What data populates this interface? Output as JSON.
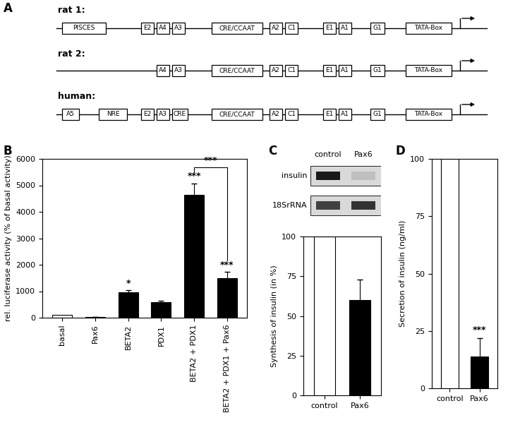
{
  "diagram": {
    "label": "A",
    "rows": [
      {
        "name": "rat 1:",
        "elements": [
          "PISCES",
          "E2",
          "A4",
          "A3",
          "CRE/CCAAT",
          "A2",
          "C1",
          "E1",
          "A1",
          "G1",
          "TATA-Box"
        ]
      },
      {
        "name": "rat 2:",
        "elements": [
          "A4",
          "A3",
          "CRE/CCAAT",
          "A2",
          "C1",
          "E1",
          "A1",
          "G1",
          "TATA-Box"
        ]
      },
      {
        "name": "human:",
        "elements": [
          "A5",
          "NRE",
          "E2",
          "A3",
          "CRE",
          "CRE/CCAAT",
          "A2",
          "C1",
          "E1",
          "A1",
          "G1",
          "TATA-Box"
        ]
      }
    ]
  },
  "blot": {
    "label": "C",
    "columns": [
      "control",
      "Pax6"
    ],
    "rows": [
      "insulin",
      "18SrRNA"
    ]
  },
  "chart_data": [
    {
      "type": "bar",
      "label": "B",
      "categories": [
        "basal",
        "Pax6",
        "BETA2",
        "PDX1",
        "BETA2 + PDX1",
        "BETA2 + PDX1 + Pax6"
      ],
      "values": [
        100,
        30,
        950,
        580,
        4650,
        1500
      ],
      "errors": [
        null,
        10,
        80,
        50,
        420,
        230
      ],
      "colors": [
        "#ffffff",
        "#000000",
        "#000000",
        "#000000",
        "#000000",
        "#000000"
      ],
      "significance": [
        null,
        null,
        "*",
        null,
        "***",
        "***"
      ],
      "brackets": [
        {
          "from": 4,
          "to": 5,
          "label": "***"
        }
      ],
      "y_label": "rel. luciferase activity (% of basal activity)",
      "ylim": [
        0,
        6000
      ],
      "yticks": [
        0,
        1000,
        2000,
        3000,
        4000,
        5000,
        6000
      ]
    },
    {
      "type": "bar",
      "categories": [
        "control",
        "Pax6"
      ],
      "values": [
        100,
        60
      ],
      "errors": [
        null,
        13
      ],
      "colors": [
        "#ffffff",
        "#000000"
      ],
      "significance": [
        null,
        null
      ],
      "y_label": "Synthesis of insulin (in %)",
      "ylim": [
        0,
        100
      ],
      "yticks": [
        0,
        25,
        50,
        75,
        100
      ]
    },
    {
      "type": "bar",
      "label": "D",
      "categories": [
        "control",
        "Pax6"
      ],
      "values": [
        100,
        14
      ],
      "errors": [
        null,
        8
      ],
      "colors": [
        "#ffffff",
        "#000000"
      ],
      "significance": [
        null,
        "***"
      ],
      "y_label": "Secretion of insulin (ng/ml)",
      "ylim": [
        0,
        100
      ],
      "yticks": [
        0,
        25,
        50,
        75,
        100
      ]
    }
  ]
}
